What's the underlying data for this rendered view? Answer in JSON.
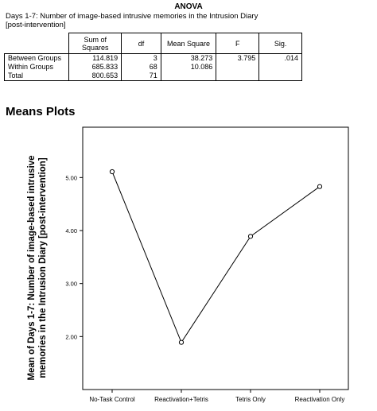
{
  "anova": {
    "title": "ANOVA",
    "caption_line1": "Days 1-7: Number of image-based intrusive memories in the Intrusion Diary",
    "caption_line2": "[post-intervention]",
    "headers": {
      "sum_line1": "Sum of",
      "sum_line2": "Squares",
      "df": "df",
      "mean_square": "Mean Square",
      "f": "F",
      "sig": "Sig."
    },
    "rows": [
      {
        "label": "Between Groups",
        "sum": "114.819",
        "df": "3",
        "ms": "38.273",
        "f": "3.795",
        "sig": ".014"
      },
      {
        "label": "Within Groups",
        "sum": "685.833",
        "df": "68",
        "ms": "10.086",
        "f": "",
        "sig": ""
      },
      {
        "label": "Total",
        "sum": "800.653",
        "df": "71",
        "ms": "",
        "f": "",
        "sig": ""
      }
    ]
  },
  "means_plots": {
    "heading": "Means Plots"
  },
  "chart_data": {
    "type": "line",
    "title": "",
    "ylabel_line1": "Mean of Days 1-7: Number of image-based intrusive",
    "ylabel_line2": "memories in the Intrusion Diary [post-intervention]",
    "xlabel": "",
    "categories": [
      "No-Task Control",
      "Reactivation+Tetris",
      "Tetris Only",
      "Reactivation Only"
    ],
    "values": [
      5.11,
      1.89,
      3.89,
      4.83
    ],
    "yticks": [
      "2.00",
      "3.00",
      "4.00",
      "5.00"
    ],
    "ytick_values": [
      2,
      3,
      4,
      5
    ],
    "ylim": [
      1.0,
      5.95
    ],
    "grid": false,
    "marker": "open-circle"
  }
}
